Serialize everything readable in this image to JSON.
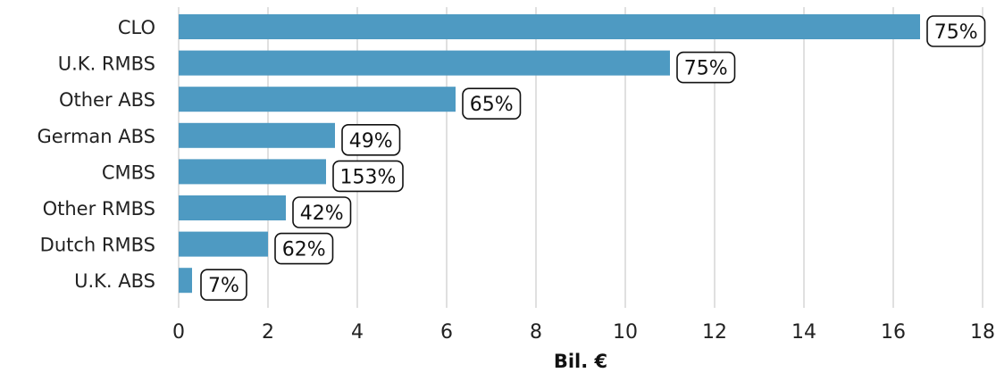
{
  "chart_data": {
    "type": "bar",
    "orientation": "horizontal",
    "categories": [
      "CLO",
      "U.K. RMBS",
      "Other ABS",
      "German ABS",
      "CMBS",
      "Other RMBS",
      "Dutch RMBS",
      "U.K. ABS"
    ],
    "values": [
      16.6,
      11.0,
      6.2,
      3.5,
      3.3,
      2.4,
      2.0,
      0.3
    ],
    "data_labels": [
      "75%",
      "75%",
      "65%",
      "49%",
      "153%",
      "42%",
      "62%",
      "7%"
    ],
    "xlabel": "Bil. €",
    "xlim": [
      0,
      18
    ],
    "xticks": [
      0,
      2,
      4,
      6,
      8,
      10,
      12,
      14,
      16,
      18
    ],
    "grid": true,
    "bar_color": "#4e9ac2"
  }
}
